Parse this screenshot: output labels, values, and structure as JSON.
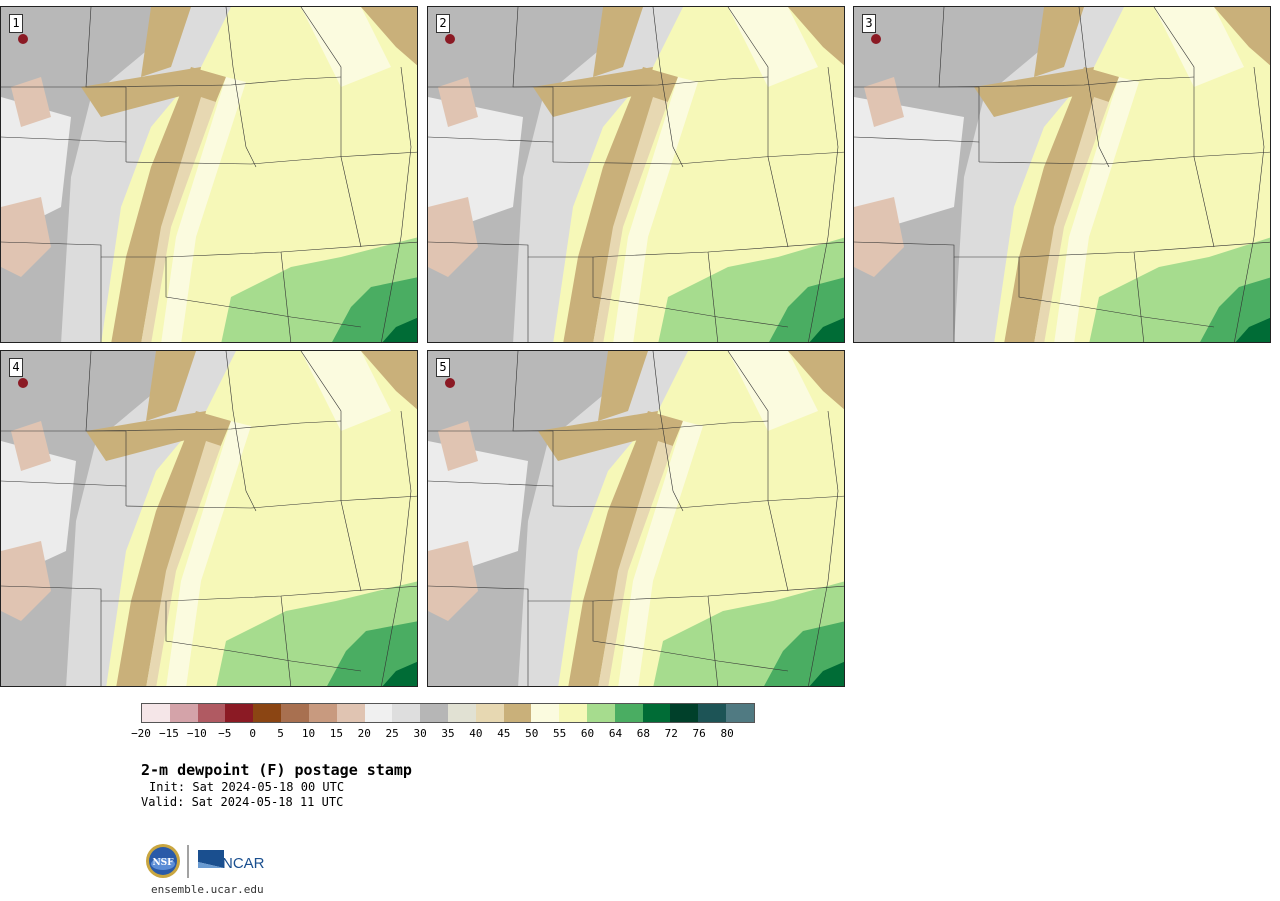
{
  "panels": [
    {
      "label": "1"
    },
    {
      "label": "2"
    },
    {
      "label": "3"
    },
    {
      "label": "4"
    },
    {
      "label": "5"
    }
  ],
  "colorbar": {
    "colors": [
      "#f5e6e8",
      "#d4a3a9",
      "#b05a62",
      "#8b1a24",
      "#8b4513",
      "#a87050",
      "#c89a7f",
      "#e0c4b2",
      "#f0f0f0",
      "#dedede",
      "#b6b6b6",
      "#e1e1d3",
      "#e7d8b2",
      "#c9b07a",
      "#fbfbdf",
      "#f6f8b8",
      "#a6dc8e",
      "#4aad62",
      "#006c36",
      "#00402a",
      "#1d5456",
      "#507a82"
    ],
    "tick_labels": [
      "−20",
      "−15",
      "−10",
      "−5",
      "0",
      "5",
      "10",
      "15",
      "20",
      "25",
      "30",
      "35",
      "40",
      "45",
      "50",
      "55",
      "60",
      "64",
      "68",
      "72",
      "76",
      "80"
    ]
  },
  "title": "2-m dewpoint (F) postage stamp",
  "init": "Init: Sat 2024-05-18 00 UTC",
  "valid": "Valid: Sat 2024-05-18 11 UTC",
  "footer_url": "ensemble.ucar.edu",
  "logos": {
    "nsf": "NSF",
    "ncar": "NCAR"
  }
}
